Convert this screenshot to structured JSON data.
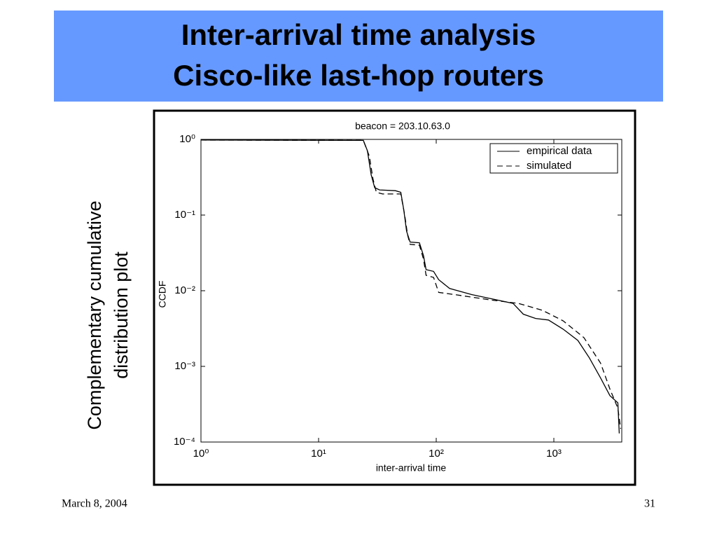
{
  "slide": {
    "title_lines": [
      "Inter-arrival time analysis",
      "Cisco-like last-hop routers"
    ],
    "side_label_lines": [
      "Complementary cumulative",
      "distribution plot"
    ],
    "footer_date": "March 8, 2004",
    "page_number": "31"
  },
  "chart_data": {
    "type": "line",
    "title": "beacon = 203.10.63.0",
    "x_label": "inter-arrival time",
    "y_label": "CCDF",
    "xscale": "log",
    "yscale": "log",
    "xlim": [
      1,
      3780
    ],
    "ylim": [
      0.0001,
      1
    ],
    "xticks": [
      {
        "value": 1,
        "label": "10⁰"
      },
      {
        "value": 10,
        "label": "10¹"
      },
      {
        "value": 100,
        "label": "10²"
      },
      {
        "value": 1000,
        "label": "10³"
      }
    ],
    "yticks": [
      {
        "value": 0.0001,
        "label": "10⁻⁴"
      },
      {
        "value": 0.001,
        "label": "10⁻³"
      },
      {
        "value": 0.01,
        "label": "10⁻²"
      },
      {
        "value": 0.1,
        "label": "10⁻¹"
      },
      {
        "value": 1,
        "label": "10⁰"
      }
    ],
    "legend": "upper right",
    "series": [
      {
        "name": "empirical data",
        "color": "#000000",
        "style": "solid",
        "x": [
          1,
          24,
          26,
          28,
          30,
          33,
          45,
          50,
          53,
          56,
          60,
          72,
          78,
          82,
          95,
          105,
          130,
          200,
          300,
          450,
          550,
          700,
          900,
          1200,
          1600,
          2000,
          2500,
          3000,
          3500,
          3600
        ],
        "values": [
          0.98,
          0.97,
          0.71,
          0.34,
          0.23,
          0.215,
          0.21,
          0.2,
          0.116,
          0.061,
          0.044,
          0.043,
          0.029,
          0.019,
          0.018,
          0.014,
          0.0107,
          0.0089,
          0.0078,
          0.0068,
          0.0049,
          0.0043,
          0.0041,
          0.0031,
          0.0022,
          0.0013,
          0.0007,
          0.00041,
          0.00033,
          0.00013
        ]
      },
      {
        "name": "simulated",
        "color": "#000000",
        "style": "dashed",
        "x": [
          1,
          24,
          27,
          29,
          31,
          35,
          50,
          54,
          57,
          60,
          72,
          78,
          82,
          95,
          105,
          150,
          300,
          500,
          800,
          1200,
          1800,
          2500,
          3000,
          3500,
          3700
        ],
        "values": [
          0.98,
          0.97,
          0.6,
          0.3,
          0.2,
          0.19,
          0.19,
          0.1,
          0.055,
          0.041,
          0.04,
          0.026,
          0.016,
          0.015,
          0.0095,
          0.0088,
          0.0075,
          0.0068,
          0.0055,
          0.004,
          0.0024,
          0.0011,
          0.0005,
          0.00028,
          0.00015
        ]
      }
    ]
  }
}
